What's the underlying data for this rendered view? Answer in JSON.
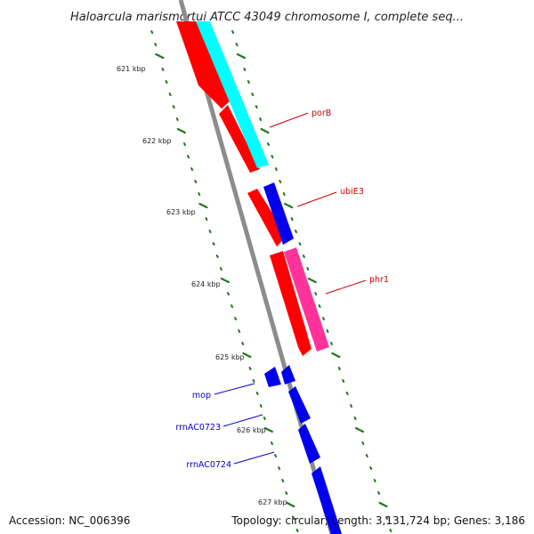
{
  "title": "Haloarcula marismortui ATCC 43049 chromosome I, complete seq...",
  "footer": {
    "accession": "Accession: NC_006396",
    "topology": "Topology: circular; Length: 3,131,724 bp; Genes: 3,186"
  },
  "colors": {
    "backbone": "#8c8c8c",
    "tick": "#1e7a1e",
    "forward_red": "#ff0000",
    "forward_cyan": "#00ffff",
    "reverse_blue": "#0000ee",
    "magenta": "#ff3399",
    "label_forward": "#cc0000",
    "label_reverse": "#0000cc"
  },
  "ruler": {
    "labels": [
      "621 kbp",
      "622 kbp",
      "623 kbp",
      "624 kbp",
      "625 kbp",
      "626 kbp",
      "627 kbp"
    ]
  },
  "genes": [
    {
      "name": "porB",
      "strand": "forward",
      "color": "red"
    },
    {
      "name": "ubiE3",
      "strand": "forward",
      "color": "red"
    },
    {
      "name": "phr1",
      "strand": "forward",
      "color": "magenta"
    },
    {
      "name": "mop",
      "strand": "reverse",
      "color": "blue"
    },
    {
      "name": "rrnAC0723",
      "strand": "reverse",
      "color": "blue"
    },
    {
      "name": "rrnAC0724",
      "strand": "reverse",
      "color": "blue"
    }
  ]
}
